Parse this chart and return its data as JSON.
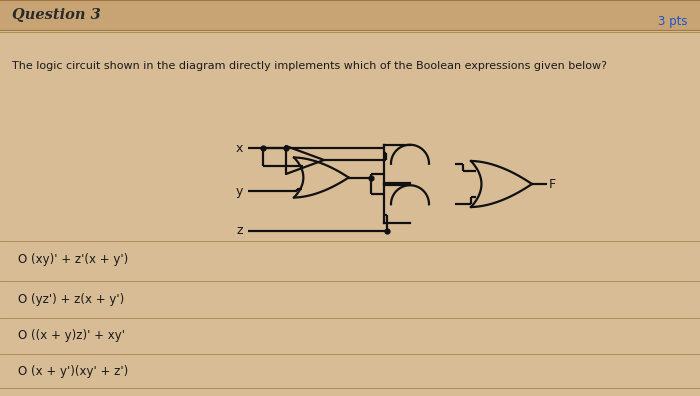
{
  "title": "Question 3",
  "pts": "3 pts",
  "question": "The logic circuit shown in the diagram directly implements which of the Boolean expressions given below?",
  "options": [
    "O (xy)' + z'(x + y')",
    "O (yz') + z(x + y')",
    "O ((x + y)z)' + xy'",
    "O (x + y')(xy' + z')"
  ],
  "bg_color": "#d8bc96",
  "header_bg": "#c8a474",
  "divider_color": "#a07840",
  "text_color": "#1a1a1a",
  "title_color": "#2a2a2a",
  "circuit_color": "#111111",
  "line_width": 1.6,
  "figw": 7.0,
  "figh": 3.96
}
